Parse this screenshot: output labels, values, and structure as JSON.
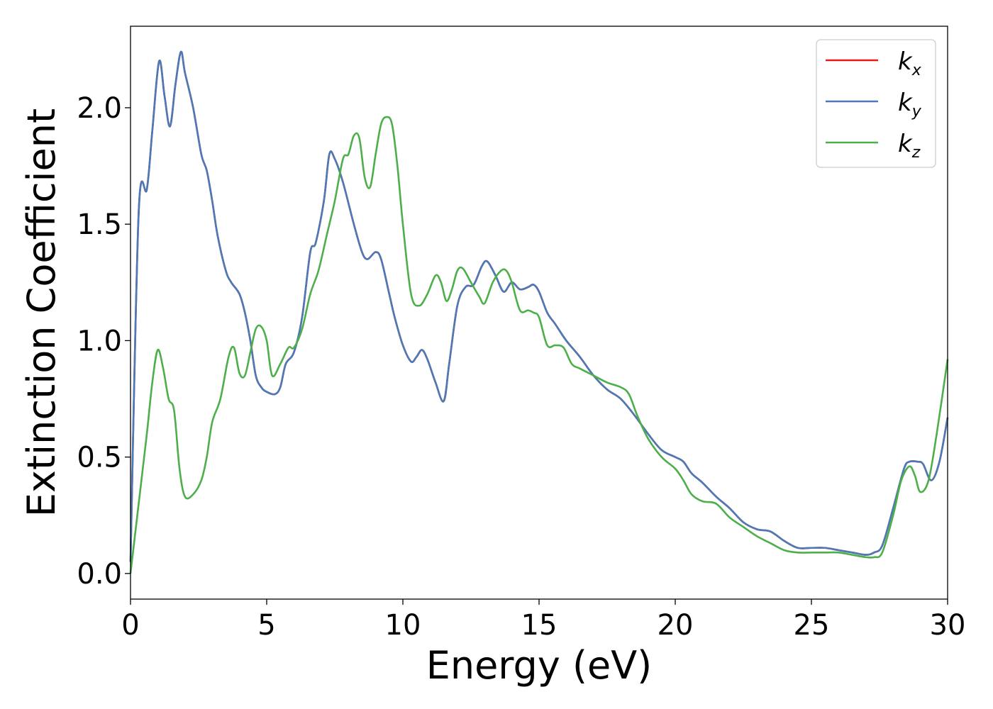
{
  "chart_data": {
    "type": "line",
    "xlabel": "Energy (eV)",
    "ylabel": "Extinction Coefficient",
    "xlim": [
      0,
      30
    ],
    "ylim": [
      -0.11,
      2.35
    ],
    "xticks": [
      "0",
      "5",
      "10",
      "15",
      "20",
      "25",
      "30"
    ],
    "yticks": [
      "0.0",
      "0.5",
      "1.0",
      "1.5",
      "2.0"
    ],
    "grid": false,
    "legend_position": "top-right",
    "series": [
      {
        "name": "k_x",
        "label_main": "k",
        "label_sub": "x",
        "color": "#e41a1c",
        "x": [
          0,
          0.3,
          0.6,
          0.8,
          1.05,
          1.25,
          1.45,
          1.65,
          1.85,
          2.0,
          2.3,
          2.6,
          2.8,
          3.0,
          3.2,
          3.5,
          3.7,
          4.0,
          4.2,
          4.4,
          4.6,
          4.8,
          5.0,
          5.3,
          5.5,
          5.7,
          6.0,
          6.3,
          6.6,
          6.8,
          7.1,
          7.3,
          7.5,
          7.8,
          8.2,
          8.5,
          8.7,
          9.0,
          9.2,
          9.5,
          9.7,
          10.0,
          10.3,
          10.5,
          10.7,
          10.9,
          11.2,
          11.5,
          11.7,
          12.0,
          12.3,
          12.6,
          12.9,
          13.1,
          13.4,
          13.7,
          14.0,
          14.3,
          14.6,
          14.8,
          15.0,
          15.3,
          15.6,
          16.0,
          16.5,
          17.0,
          17.5,
          18.0,
          18.5,
          19.0,
          19.5,
          20.0,
          20.3,
          20.6,
          21.0,
          21.5,
          22.0,
          22.5,
          23.0,
          23.5,
          24.0,
          24.5,
          25.0,
          25.5,
          26.0,
          26.5,
          27.0,
          27.3,
          27.6,
          28.0,
          28.4,
          28.6,
          28.9,
          29.1,
          29.4,
          29.7,
          30.0
        ],
        "y": [
          0.05,
          1.55,
          1.65,
          1.9,
          2.2,
          2.05,
          1.92,
          2.1,
          2.24,
          2.15,
          2.0,
          1.8,
          1.73,
          1.6,
          1.45,
          1.3,
          1.25,
          1.2,
          1.12,
          1.0,
          0.85,
          0.8,
          0.78,
          0.77,
          0.8,
          0.9,
          0.95,
          1.1,
          1.38,
          1.42,
          1.6,
          1.8,
          1.78,
          1.68,
          1.5,
          1.38,
          1.35,
          1.38,
          1.35,
          1.2,
          1.1,
          0.98,
          0.91,
          0.93,
          0.96,
          0.92,
          0.82,
          0.74,
          0.9,
          1.15,
          1.23,
          1.24,
          1.32,
          1.34,
          1.28,
          1.21,
          1.25,
          1.22,
          1.23,
          1.24,
          1.21,
          1.12,
          1.07,
          1.0,
          0.93,
          0.85,
          0.79,
          0.75,
          0.68,
          0.6,
          0.53,
          0.5,
          0.48,
          0.43,
          0.39,
          0.33,
          0.28,
          0.22,
          0.19,
          0.18,
          0.14,
          0.11,
          0.11,
          0.11,
          0.1,
          0.09,
          0.08,
          0.09,
          0.12,
          0.28,
          0.45,
          0.48,
          0.48,
          0.47,
          0.4,
          0.48,
          0.67
        ]
      },
      {
        "name": "k_y",
        "label_main": "k",
        "label_sub": "y",
        "color": "#4a7ab8",
        "x": [
          0,
          0.3,
          0.6,
          0.8,
          1.05,
          1.25,
          1.45,
          1.65,
          1.85,
          2.0,
          2.3,
          2.6,
          2.8,
          3.0,
          3.2,
          3.5,
          3.7,
          4.0,
          4.2,
          4.4,
          4.6,
          4.8,
          5.0,
          5.3,
          5.5,
          5.7,
          6.0,
          6.3,
          6.6,
          6.8,
          7.1,
          7.3,
          7.5,
          7.8,
          8.2,
          8.5,
          8.7,
          9.0,
          9.2,
          9.5,
          9.7,
          10.0,
          10.3,
          10.5,
          10.7,
          10.9,
          11.2,
          11.5,
          11.7,
          12.0,
          12.3,
          12.6,
          12.9,
          13.1,
          13.4,
          13.7,
          14.0,
          14.3,
          14.6,
          14.8,
          15.0,
          15.3,
          15.6,
          16.0,
          16.5,
          17.0,
          17.5,
          18.0,
          18.5,
          19.0,
          19.5,
          20.0,
          20.3,
          20.6,
          21.0,
          21.5,
          22.0,
          22.5,
          23.0,
          23.5,
          24.0,
          24.5,
          25.0,
          25.5,
          26.0,
          26.5,
          27.0,
          27.3,
          27.6,
          28.0,
          28.4,
          28.6,
          28.9,
          29.1,
          29.4,
          29.7,
          30.0
        ],
        "y": [
          0.05,
          1.55,
          1.65,
          1.9,
          2.2,
          2.05,
          1.92,
          2.1,
          2.24,
          2.15,
          2.0,
          1.8,
          1.73,
          1.6,
          1.45,
          1.3,
          1.25,
          1.2,
          1.12,
          1.0,
          0.85,
          0.8,
          0.78,
          0.77,
          0.8,
          0.9,
          0.95,
          1.1,
          1.38,
          1.42,
          1.6,
          1.8,
          1.78,
          1.68,
          1.5,
          1.38,
          1.35,
          1.38,
          1.35,
          1.2,
          1.1,
          0.98,
          0.91,
          0.93,
          0.96,
          0.92,
          0.82,
          0.74,
          0.9,
          1.15,
          1.23,
          1.24,
          1.32,
          1.34,
          1.28,
          1.21,
          1.25,
          1.22,
          1.23,
          1.24,
          1.21,
          1.12,
          1.07,
          1.0,
          0.93,
          0.85,
          0.79,
          0.75,
          0.68,
          0.6,
          0.53,
          0.5,
          0.48,
          0.43,
          0.39,
          0.33,
          0.28,
          0.22,
          0.19,
          0.18,
          0.14,
          0.11,
          0.11,
          0.11,
          0.1,
          0.09,
          0.08,
          0.09,
          0.12,
          0.28,
          0.45,
          0.48,
          0.48,
          0.47,
          0.4,
          0.48,
          0.67
        ]
      },
      {
        "name": "k_z",
        "label_main": "k",
        "label_sub": "z",
        "color": "#4daf4a",
        "x": [
          0,
          0.3,
          0.6,
          0.8,
          1.0,
          1.2,
          1.4,
          1.6,
          1.8,
          2.0,
          2.3,
          2.6,
          2.8,
          3.0,
          3.3,
          3.6,
          3.8,
          4.0,
          4.2,
          4.4,
          4.6,
          4.8,
          5.0,
          5.2,
          5.5,
          5.8,
          6.0,
          6.3,
          6.6,
          6.9,
          7.2,
          7.5,
          7.8,
          8.0,
          8.2,
          8.4,
          8.6,
          8.8,
          9.0,
          9.2,
          9.4,
          9.6,
          9.8,
          10.0,
          10.3,
          10.6,
          10.9,
          11.2,
          11.4,
          11.6,
          11.8,
          12.0,
          12.2,
          12.5,
          12.8,
          13.0,
          13.3,
          13.6,
          13.8,
          14.0,
          14.3,
          14.6,
          14.8,
          15.0,
          15.3,
          15.6,
          15.9,
          16.2,
          16.5,
          17.0,
          17.5,
          18.0,
          18.3,
          18.6,
          19.0,
          19.5,
          20.0,
          20.3,
          20.6,
          21.0,
          21.5,
          22.0,
          22.5,
          23.0,
          23.5,
          24.0,
          24.5,
          25.0,
          25.5,
          26.0,
          26.5,
          27.0,
          27.3,
          27.6,
          28.0,
          28.3,
          28.6,
          28.8,
          29.0,
          29.3,
          29.6,
          30.0
        ],
        "y": [
          0.0,
          0.3,
          0.6,
          0.82,
          0.96,
          0.88,
          0.75,
          0.7,
          0.45,
          0.33,
          0.34,
          0.4,
          0.5,
          0.65,
          0.75,
          0.93,
          0.97,
          0.86,
          0.85,
          0.95,
          1.05,
          1.06,
          1.0,
          0.85,
          0.9,
          0.97,
          0.97,
          1.05,
          1.2,
          1.3,
          1.45,
          1.6,
          1.78,
          1.8,
          1.88,
          1.87,
          1.7,
          1.66,
          1.8,
          1.93,
          1.96,
          1.93,
          1.75,
          1.5,
          1.2,
          1.15,
          1.2,
          1.28,
          1.25,
          1.17,
          1.22,
          1.3,
          1.31,
          1.25,
          1.19,
          1.16,
          1.25,
          1.3,
          1.3,
          1.25,
          1.13,
          1.13,
          1.12,
          1.1,
          0.98,
          0.98,
          0.97,
          0.9,
          0.88,
          0.85,
          0.82,
          0.8,
          0.77,
          0.68,
          0.58,
          0.5,
          0.45,
          0.4,
          0.34,
          0.31,
          0.3,
          0.24,
          0.2,
          0.16,
          0.13,
          0.1,
          0.09,
          0.09,
          0.09,
          0.09,
          0.08,
          0.07,
          0.07,
          0.09,
          0.25,
          0.4,
          0.46,
          0.42,
          0.35,
          0.4,
          0.6,
          0.92
        ]
      }
    ]
  }
}
